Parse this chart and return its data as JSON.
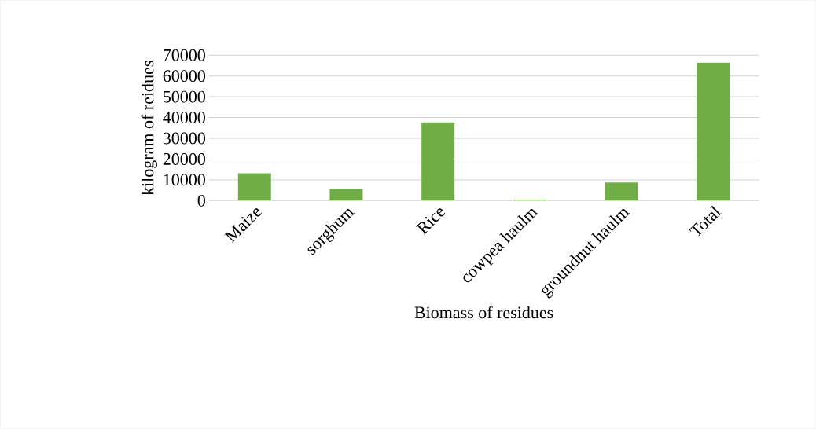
{
  "chart_data": {
    "type": "bar",
    "xlabel": "Biomass of residues",
    "ylabel": "kilogram of reidues",
    "categories": [
      "Maize",
      "sorghum",
      "Rice",
      "cowpea haulm",
      "groundnut haulm",
      "Total"
    ],
    "values": [
      13200,
      5700,
      37700,
      500,
      8700,
      66400
    ],
    "color": "#70ad47",
    "ylim": [
      0,
      70000
    ],
    "yticks": [
      0,
      10000,
      20000,
      30000,
      40000,
      50000,
      60000,
      70000
    ],
    "grid": "y"
  }
}
